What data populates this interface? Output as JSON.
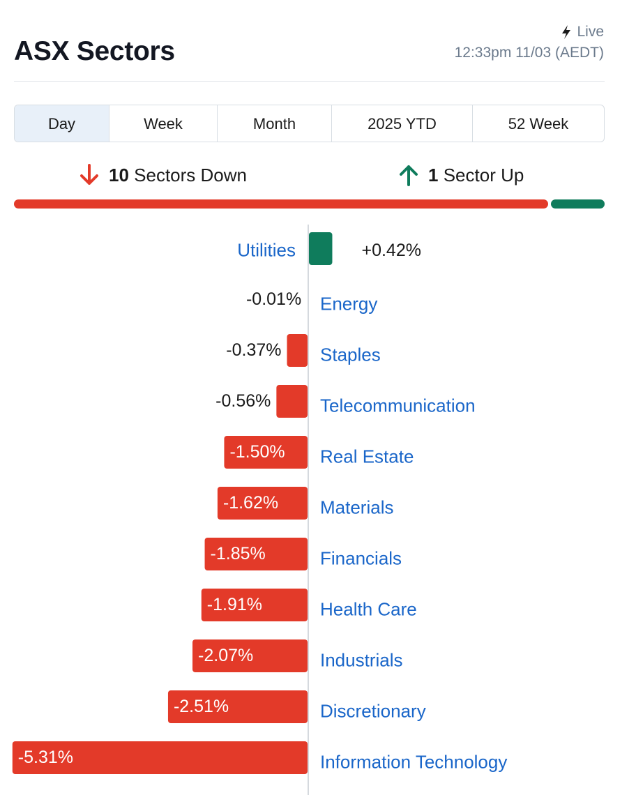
{
  "header": {
    "title": "ASX Sectors",
    "live_label": "Live",
    "timestamp": "12:33pm 11/03 (AEDT)"
  },
  "tabs": [
    {
      "label": "Day",
      "active": true
    },
    {
      "label": "Week",
      "active": false
    },
    {
      "label": "Month",
      "active": false
    },
    {
      "label": "2025 YTD",
      "active": false
    },
    {
      "label": "52 Week",
      "active": false
    }
  ],
  "summary": {
    "down_count": "10",
    "down_label": "Sectors Down",
    "up_count": "1",
    "up_label": "Sector Up",
    "down_fraction": 0.909,
    "up_fraction": 0.091
  },
  "colors": {
    "negative": "#e33a29",
    "positive": "#0f7c5c",
    "link": "#1a66c9",
    "axis": "#d5d9de"
  },
  "icons": {
    "live": "lightning-bolt-icon",
    "down": "arrow-down-icon",
    "up": "arrow-up-icon"
  },
  "chart_data": {
    "type": "bar",
    "orientation": "horizontal",
    "categories": [
      "Utilities",
      "Energy",
      "Staples",
      "Telecommunication",
      "Real Estate",
      "Materials",
      "Financials",
      "Health Care",
      "Industrials",
      "Discretionary",
      "Information Technology"
    ],
    "values": [
      0.42,
      -0.01,
      -0.37,
      -0.56,
      -1.5,
      -1.62,
      -1.85,
      -1.91,
      -2.07,
      -2.51,
      -5.31
    ],
    "labels": [
      "+0.42%",
      "-0.01%",
      "-0.37%",
      "-0.56%",
      "-1.50%",
      "-1.62%",
      "-1.85%",
      "-1.91%",
      "-2.07%",
      "-2.51%",
      "-5.31%"
    ],
    "unit": "%",
    "grid": false
  }
}
